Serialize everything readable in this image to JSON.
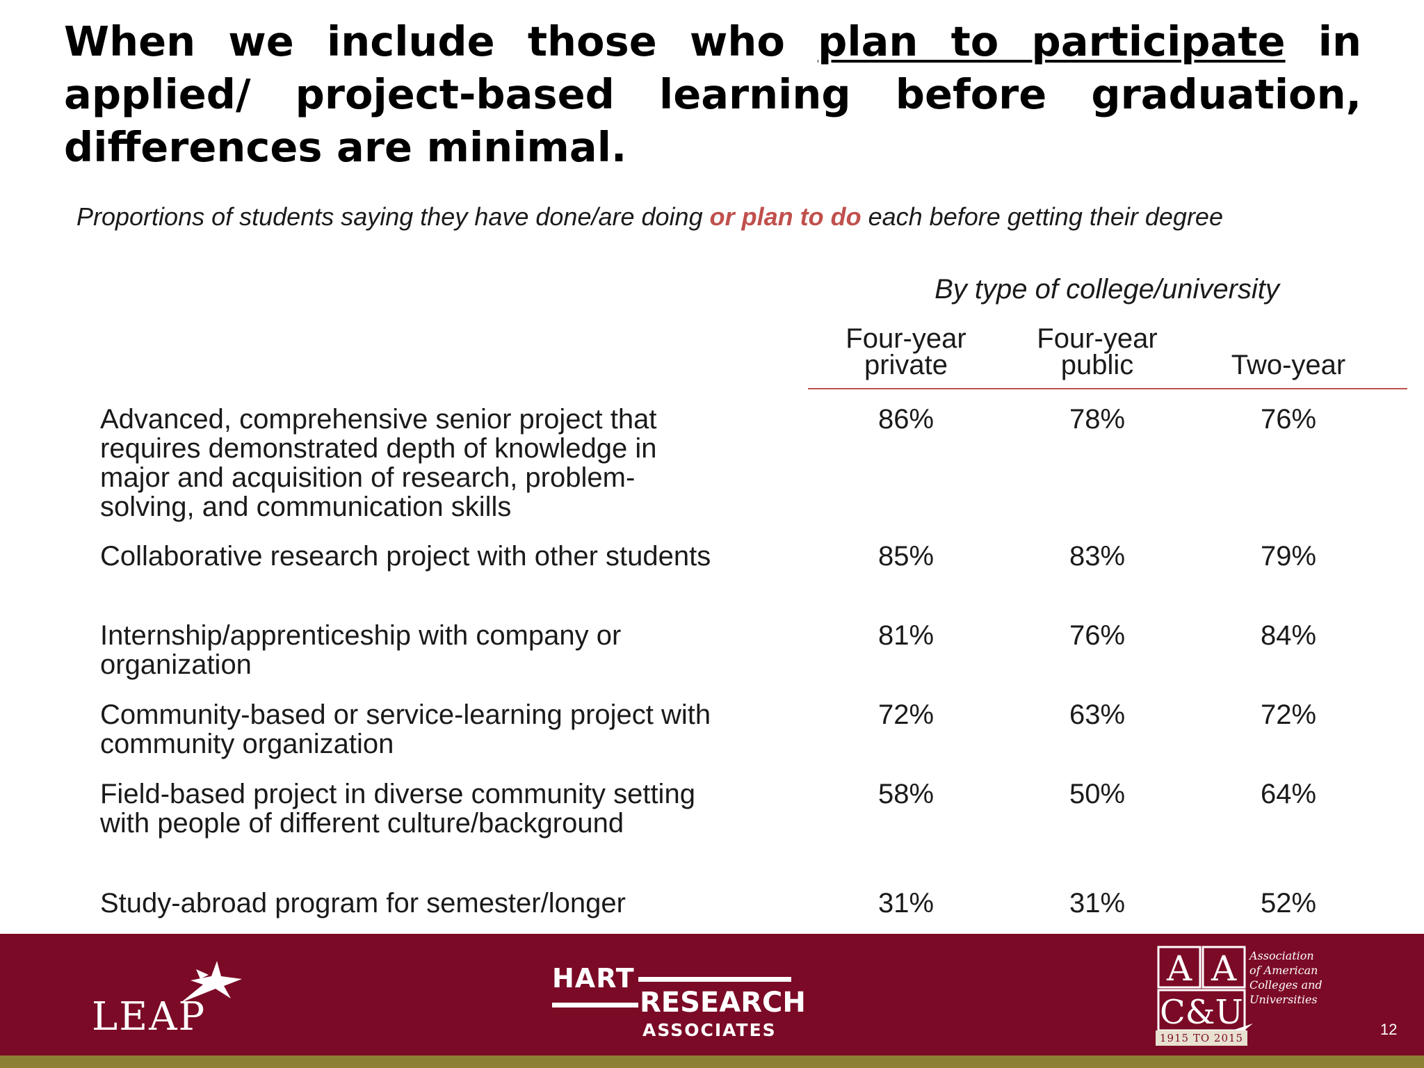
{
  "title": {
    "before": "When we include those who",
    "underlined": "plan to participate",
    "after": "in applied/ project-based learning before graduation, differences are minimal."
  },
  "subtitle": {
    "before": "Proportions of students saying they have done/are doing",
    "highlight": "or plan to do",
    "after": "each before getting their degree"
  },
  "table": {
    "group_header": "By type of college/university",
    "columns": [
      {
        "line1": "Four-year",
        "line2": "private"
      },
      {
        "line1": "Four-year",
        "line2": "public"
      },
      {
        "line1": "",
        "line2": "Two-year"
      }
    ],
    "rows": [
      {
        "label": "Advanced, comprehensive senior project that requires demonstrated depth of knowledge in major and acquisition of research, problem-solving, and communication skills",
        "values": [
          "86%",
          "78%",
          "76%"
        ]
      },
      {
        "label": "Collaborative research project with other students",
        "values": [
          "85%",
          "83%",
          "79%"
        ]
      },
      {
        "label": "Internship/apprenticeship with company or organization",
        "values": [
          "81%",
          "76%",
          "84%"
        ]
      },
      {
        "label": "Community-based or service-learning project with community organization",
        "values": [
          "72%",
          "63%",
          "72%"
        ]
      },
      {
        "label": "Field-based project in diverse community setting with people of different culture/background",
        "values": [
          "58%",
          "50%",
          "64%"
        ]
      },
      {
        "label": "Study-abroad program for semester/longer",
        "values": [
          "31%",
          "31%",
          "52%"
        ]
      }
    ]
  },
  "footer": {
    "leap_logo": "LEAP",
    "hart_line1": "HART",
    "hart_line2": "RESEARCH",
    "hart_line3": "ASSOCIATES",
    "aacu_letters": [
      "A",
      "A",
      "C&U"
    ],
    "aacu_name": [
      "Association",
      "of American",
      "Colleges and",
      "Universities"
    ],
    "aacu_years": "1915 TO 2015",
    "page_number": "12",
    "colors": {
      "band": "#7b0a26",
      "stripe": "#8d8035",
      "accent": "#c0504d"
    }
  }
}
